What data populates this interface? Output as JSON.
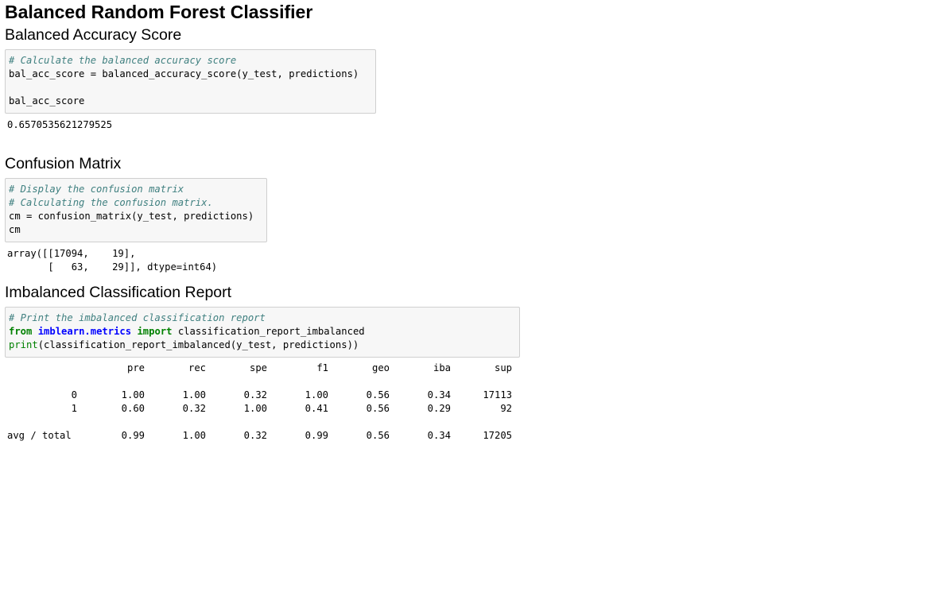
{
  "title": "Balanced Random Forest Classifier",
  "sections": {
    "accuracy": {
      "heading": "Balanced Accuracy Score",
      "code_comment": "# Calculate the balanced accuracy score",
      "code_line2": "bal_acc_score = balanced_accuracy_score(y_test, predictions)",
      "code_line3": "",
      "code_line4": "bal_acc_score",
      "output": "0.6570535621279525"
    },
    "confusion": {
      "heading": "Confusion Matrix",
      "comment1": "# Display the confusion matrix",
      "comment2": "# Calculating the confusion matrix.",
      "code_line3": "cm = confusion_matrix(y_test, predictions)",
      "code_line4": "cm",
      "output_line1": "array([[17094,    19],",
      "output_line2": "       [   63,    29]], dtype=int64)"
    },
    "report": {
      "heading": "Imbalanced Classification Report",
      "comment": "# Print the imbalanced classification report",
      "kw_from": "from",
      "module": "imblearn.metrics",
      "kw_import": "import",
      "import_name": " classification_report_imbalanced",
      "print_fn": "print",
      "print_args": "(classification_report_imbalanced(y_test, predictions))",
      "columns": [
        "pre",
        "rec",
        "spe",
        "f1",
        "geo",
        "iba",
        "sup"
      ],
      "rows": [
        {
          "label": "0",
          "values": [
            "1.00",
            "1.00",
            "0.32",
            "1.00",
            "0.56",
            "0.34",
            "17113"
          ]
        },
        {
          "label": "1",
          "values": [
            "0.60",
            "0.32",
            "1.00",
            "0.41",
            "0.56",
            "0.29",
            "92"
          ]
        }
      ],
      "total": {
        "label": "avg / total",
        "values": [
          "0.99",
          "1.00",
          "0.32",
          "0.99",
          "0.56",
          "0.34",
          "17205"
        ]
      }
    }
  }
}
